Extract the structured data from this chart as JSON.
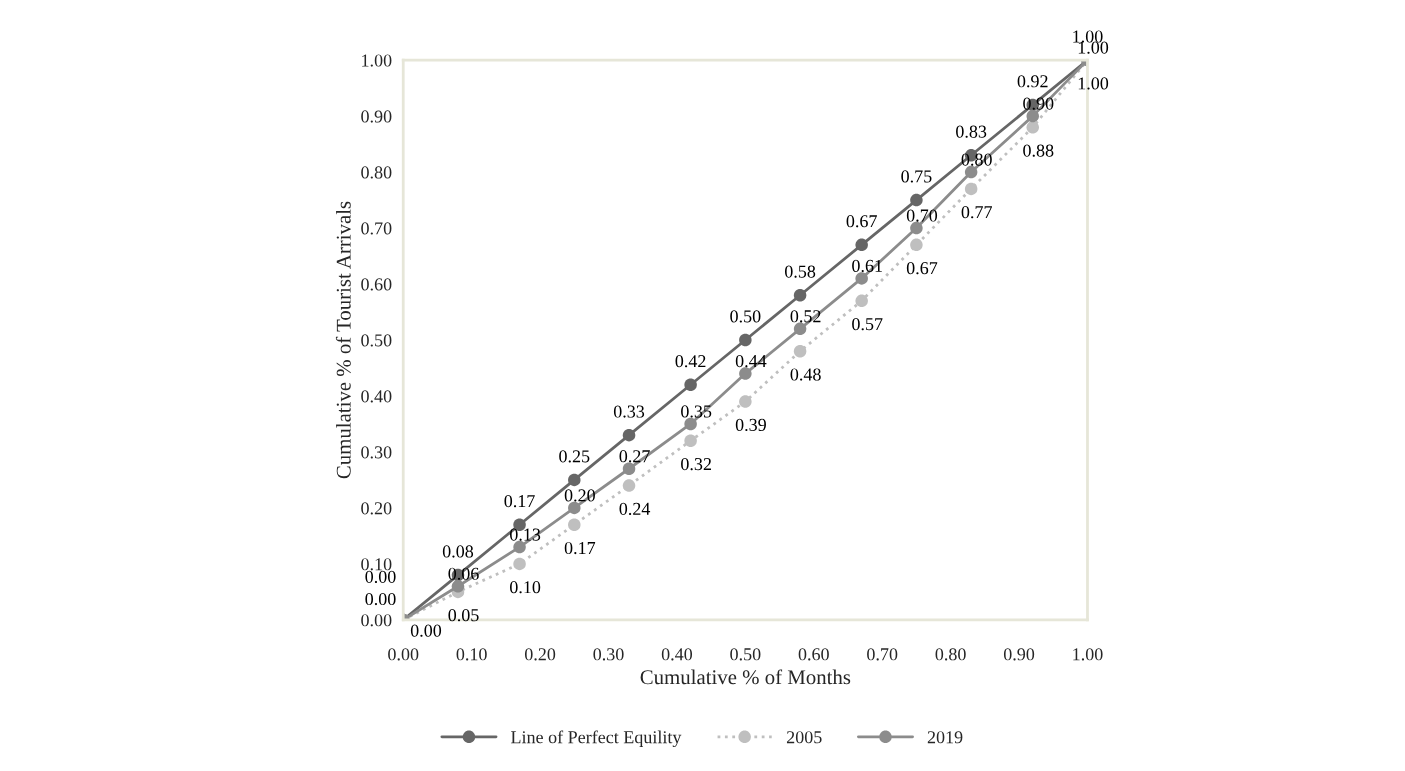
{
  "chart_data": {
    "type": "line",
    "xlabel": "Cumulative % of Months",
    "ylabel": "Cumulative % of Tourist Arrivals",
    "x": [
      0.0,
      0.08,
      0.17,
      0.25,
      0.33,
      0.42,
      0.5,
      0.58,
      0.67,
      0.75,
      0.83,
      0.92,
      1.0
    ],
    "series": [
      {
        "name": "Line of Perfect Equility",
        "color": "#666666",
        "line_style": "solid",
        "values": [
          0.0,
          0.08,
          0.17,
          0.25,
          0.33,
          0.42,
          0.5,
          0.58,
          0.67,
          0.75,
          0.83,
          0.92,
          1.0
        ],
        "value_labels": [
          "0.00",
          "0.08",
          "0.17",
          "0.25",
          "0.33",
          "0.42",
          "0.50",
          "0.58",
          "0.67",
          "0.75",
          "0.83",
          "0.92",
          "1.00"
        ]
      },
      {
        "name": "2005",
        "color": "#bfbfbf",
        "line_style": "dotted",
        "values": [
          0.0,
          0.05,
          0.1,
          0.17,
          0.24,
          0.32,
          0.39,
          0.48,
          0.57,
          0.67,
          0.77,
          0.88,
          1.0
        ],
        "value_labels": [
          "0.00",
          "0.05",
          "0.10",
          "0.17",
          "0.24",
          "0.32",
          "0.39",
          "0.48",
          "0.57",
          "0.67",
          "0.77",
          "0.88",
          "1.00"
        ]
      },
      {
        "name": "2019",
        "color": "#8c8c8c",
        "line_style": "solid",
        "values": [
          0.0,
          0.06,
          0.13,
          0.2,
          0.27,
          0.35,
          0.44,
          0.52,
          0.61,
          0.7,
          0.8,
          0.9,
          1.0
        ],
        "value_labels": [
          "0.00",
          "0.06",
          "0.13",
          "0.20",
          "0.27",
          "0.35",
          "0.44",
          "0.52",
          "0.61",
          "0.70",
          "0.80",
          "0.90",
          "1.00"
        ]
      }
    ],
    "xlim": [
      0.0,
      1.0
    ],
    "ylim": [
      0.0,
      1.0
    ],
    "xticks": [
      {
        "value": 0.0,
        "label": "0.00"
      },
      {
        "value": 0.1,
        "label": "0.10"
      },
      {
        "value": 0.2,
        "label": "0.20"
      },
      {
        "value": 0.3,
        "label": "0.30"
      },
      {
        "value": 0.4,
        "label": "0.40"
      },
      {
        "value": 0.5,
        "label": "0.50"
      },
      {
        "value": 0.6,
        "label": "0.60"
      },
      {
        "value": 0.7,
        "label": "0.70"
      },
      {
        "value": 0.8,
        "label": "0.80"
      },
      {
        "value": 0.9,
        "label": "0.90"
      },
      {
        "value": 1.0,
        "label": "1.00"
      }
    ],
    "yticks": [
      {
        "value": 0.0,
        "label": "0.00"
      },
      {
        "value": 0.1,
        "label": "0.10"
      },
      {
        "value": 0.2,
        "label": "0.20"
      },
      {
        "value": 0.3,
        "label": "0.30"
      },
      {
        "value": 0.4,
        "label": "0.40"
      },
      {
        "value": 0.5,
        "label": "0.50"
      },
      {
        "value": 0.6,
        "label": "0.60"
      },
      {
        "value": 0.7,
        "label": "0.70"
      },
      {
        "value": 0.8,
        "label": "0.80"
      },
      {
        "value": 0.9,
        "label": "0.90"
      },
      {
        "value": 1.0,
        "label": "1.00"
      }
    ],
    "marker": "circle",
    "grid": false,
    "legend": "bottom"
  }
}
